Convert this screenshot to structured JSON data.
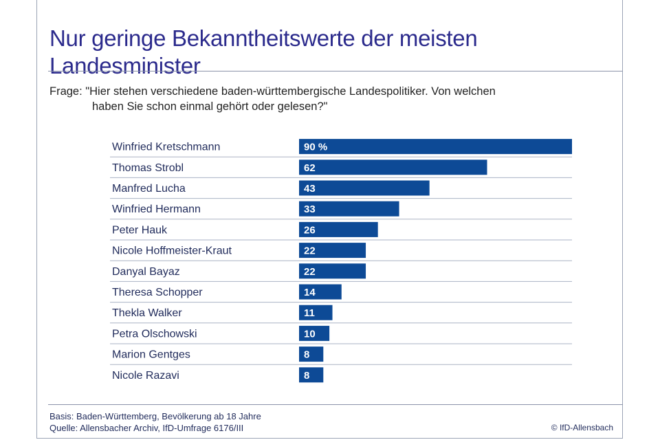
{
  "title": "Nur geringe Bekanntheitswerte der meisten Landesminister",
  "question": {
    "line1": "Frage: \"Hier stehen verschiedene baden-württembergische Landespolitiker. Von welchen",
    "line2": "haben Sie schon einmal gehört oder gelesen?\""
  },
  "footer": {
    "basis": "Basis: Baden-Württemberg, Bevölkerung ab 18 Jahre",
    "source": "Quelle: Allensbacher Archiv, IfD-Umfrage 6176/III",
    "copyright": "© IfD-Allensbach"
  },
  "colors": {
    "bar": "#0d4a96",
    "rule": "#aab2c4",
    "title": "#2b2a8c"
  },
  "chart_data": {
    "type": "bar",
    "orientation": "horizontal",
    "unit": "%",
    "categories": [
      "Winfried Kretschmann",
      "Thomas Strobl",
      "Manfred Lucha",
      "Winfried Hermann",
      "Peter Hauk",
      "Nicole Hoffmeister-Kraut",
      "Danyal Bayaz",
      "Theresa Schopper",
      "Thekla Walker",
      "Petra Olschowski",
      "Marion Gentges",
      "Nicole Razavi"
    ],
    "values": [
      90,
      62,
      43,
      33,
      26,
      22,
      22,
      14,
      11,
      10,
      8,
      8
    ],
    "labels": [
      "90 %",
      "62",
      "43",
      "33",
      "26",
      "22",
      "22",
      "14",
      "11",
      "10",
      "8",
      "8"
    ],
    "xlim": [
      0,
      100
    ],
    "grid": false,
    "legend": "none"
  }
}
